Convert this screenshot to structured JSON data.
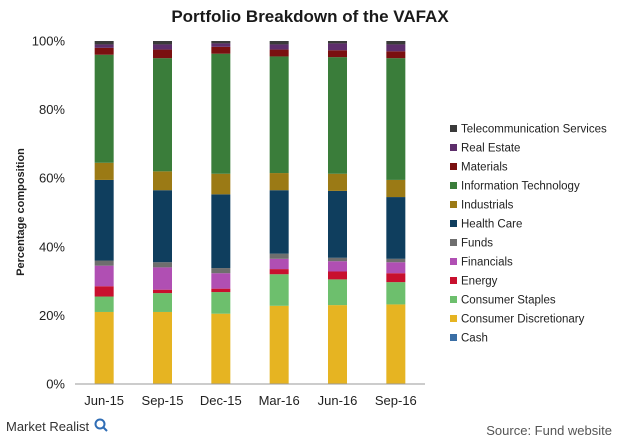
{
  "chart_data": {
    "type": "bar",
    "stacked": true,
    "title": "Portfolio Breakdown of the VAFAX",
    "ylabel": "Percentage composition",
    "xlabel": "",
    "ylim": [
      0,
      100
    ],
    "yticks": [
      "0%",
      "20%",
      "40%",
      "60%",
      "80%",
      "100%"
    ],
    "legend_position": "right",
    "categories": [
      "Jun-15",
      "Sep-15",
      "Dec-15",
      "Mar-16",
      "Jun-16",
      "Sep-16"
    ],
    "series": [
      {
        "name": "Cash",
        "color": "#3a6ea5",
        "values": [
          0.0,
          0.0,
          0.0,
          0.0,
          0.0,
          0.0
        ]
      },
      {
        "name": "Consumer Discretionary",
        "color": "#e6b422",
        "values": [
          21.0,
          21.0,
          20.5,
          22.8,
          23.0,
          23.2
        ]
      },
      {
        "name": "Consumer Staples",
        "color": "#6dbf6d",
        "values": [
          4.5,
          5.5,
          6.3,
          9.2,
          7.5,
          6.5
        ]
      },
      {
        "name": "Energy",
        "color": "#c8102e",
        "values": [
          3.0,
          1.0,
          1.0,
          1.5,
          2.3,
          2.6
        ]
      },
      {
        "name": "Financials",
        "color": "#b04fb3",
        "values": [
          6.0,
          6.5,
          4.5,
          3.0,
          3.0,
          3.2
        ]
      },
      {
        "name": "Funds",
        "color": "#6e6e6e",
        "values": [
          1.5,
          1.5,
          1.5,
          1.5,
          1.0,
          1.0
        ]
      },
      {
        "name": "Health Care",
        "color": "#0f3e5e",
        "values": [
          23.5,
          21.0,
          21.5,
          18.5,
          19.5,
          18.0
        ]
      },
      {
        "name": "Industrials",
        "color": "#9b7a15",
        "values": [
          5.0,
          5.5,
          6.0,
          5.0,
          5.0,
          5.0
        ]
      },
      {
        "name": "Information Technology",
        "color": "#3a7d3a",
        "values": [
          31.5,
          33.0,
          35.0,
          34.0,
          34.0,
          35.5
        ]
      },
      {
        "name": "Materials",
        "color": "#7a1010",
        "values": [
          2.0,
          2.5,
          2.0,
          2.0,
          2.0,
          2.0
        ]
      },
      {
        "name": "Real Estate",
        "color": "#5d2e6b",
        "values": [
          1.0,
          1.5,
          1.0,
          1.5,
          2.0,
          2.0
        ]
      },
      {
        "name": "Telecommunication Services",
        "color": "#3a3a3a",
        "values": [
          1.0,
          1.0,
          0.7,
          1.0,
          0.7,
          1.0
        ]
      }
    ]
  },
  "footer": {
    "brand": "Market Realist",
    "source": "Source: Fund website"
  }
}
